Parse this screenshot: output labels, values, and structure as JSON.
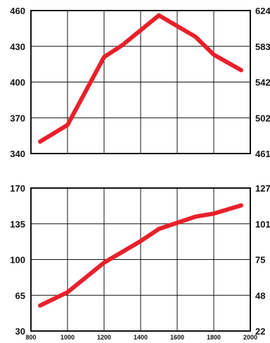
{
  "chart_data": [
    {
      "type": "line",
      "title": "",
      "xlabel": "",
      "ylabel": "",
      "grid": true,
      "xlim": [
        800,
        2000
      ],
      "ylim": [
        340,
        460
      ],
      "y_ticks": [
        340,
        370,
        400,
        430,
        460
      ],
      "y2lim": [
        461,
        624
      ],
      "y2_ticks": [
        "461",
        "502",
        "542",
        "583",
        "624"
      ],
      "x_ticks": [
        800,
        1000,
        1200,
        1400,
        1600,
        1800,
        2000
      ],
      "show_x_tick_labels": false,
      "series": [
        {
          "color": "#e8202a",
          "x": [
            850,
            1000,
            1200,
            1300,
            1500,
            1700,
            1800,
            1950
          ],
          "y": [
            350,
            364,
            421,
            431,
            456,
            438,
            423,
            410
          ]
        }
      ]
    },
    {
      "type": "line",
      "title": "",
      "xlabel": "",
      "ylabel": "",
      "grid": true,
      "xlim": [
        800,
        2000
      ],
      "ylim": [
        30,
        170
      ],
      "y_ticks": [
        30,
        65,
        100,
        135,
        170
      ],
      "y2lim": [
        22,
        127
      ],
      "y2_ticks": [
        "22",
        "48",
        "75",
        "101",
        "127"
      ],
      "x_ticks": [
        800,
        1000,
        1200,
        1400,
        1600,
        1800,
        2000
      ],
      "x_tick_labels": [
        "800",
        "1000",
        "1200",
        "1400",
        "1600",
        "1800",
        "2000"
      ],
      "show_x_tick_labels": true,
      "series": [
        {
          "color": "#e8202a",
          "x": [
            850,
            1000,
            1200,
            1400,
            1500,
            1700,
            1800,
            1950
          ],
          "y": [
            55,
            68,
            97,
            118,
            130,
            142,
            145,
            153
          ]
        }
      ]
    }
  ]
}
